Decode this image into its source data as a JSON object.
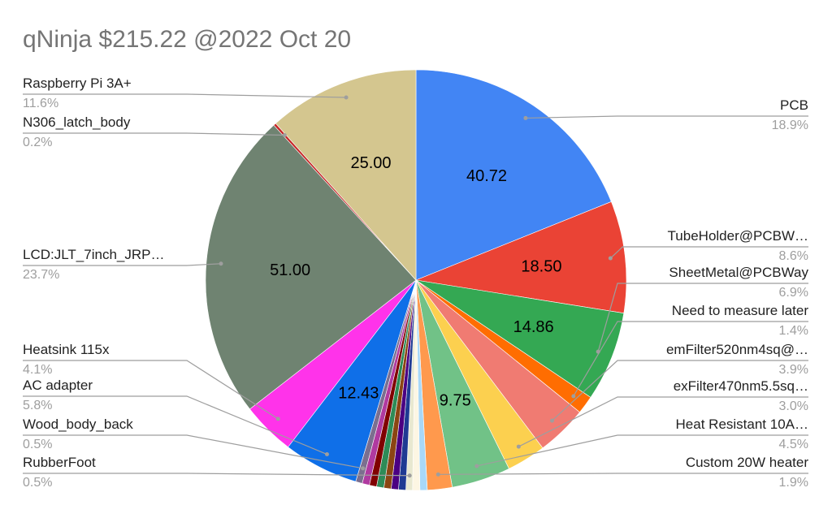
{
  "chart_data": {
    "type": "pie",
    "title": "qNinja $215.22 @2022 Oct 20",
    "categories": [
      "PCB",
      "TubeHolder@PCBW…",
      "SheetMetal@PCBWay",
      "Need to measure later",
      "emFilter520nm4sq@…",
      "exFilter470nm5.5sq…",
      "Heat Resistant 10A…",
      "Custom 20W heater",
      null,
      null,
      "RubberFoot",
      null,
      null,
      null,
      null,
      null,
      null,
      "Wood_body_back",
      "AC adapter",
      "Heatsink 115x",
      "LCD:JLT_7inch_JRP…",
      "N306_latch_body",
      "Raspberry Pi 3A+"
    ],
    "values": [
      40.72,
      18.5,
      14.86,
      3.0,
      8.4,
      6.45,
      9.75,
      4.1,
      1.2,
      1.2,
      1.1,
      1.2,
      1.2,
      1.2,
      1.2,
      1.2,
      1.2,
      1.1,
      12.43,
      8.8,
      51.0,
      0.43,
      25.0
    ],
    "value_labels": [
      "40.72",
      "18.50",
      "14.86",
      null,
      null,
      null,
      "9.75",
      null,
      null,
      null,
      null,
      null,
      null,
      null,
      null,
      null,
      null,
      null,
      "12.43",
      null,
      "51.00",
      null,
      "25.00"
    ],
    "percent_labels": [
      "18.9%",
      "8.6%",
      "6.9%",
      "1.4%",
      "3.9%",
      "3.0%",
      "4.5%",
      "1.9%",
      null,
      null,
      "0.5%",
      null,
      null,
      null,
      null,
      null,
      null,
      "0.5%",
      "5.8%",
      "4.1%",
      "23.7%",
      "0.2%",
      "11.6%"
    ],
    "colors": [
      "#4285f4",
      "#ea4335",
      "#34a853",
      "#ff6d01",
      "#f07b72",
      "#fcd04f",
      "#71c287",
      "#ff994d",
      "#a8d8f8",
      "#fdf6e3",
      "#e8e8d0",
      "#1f3a93",
      "#4b0082",
      "#8b4513",
      "#2e8b57",
      "#800000",
      "#b03aa0",
      "#7b6f8f",
      "#0f6fe8",
      "#ff33ea",
      "#6f8371",
      "#c62828",
      "#d4c68f"
    ]
  }
}
